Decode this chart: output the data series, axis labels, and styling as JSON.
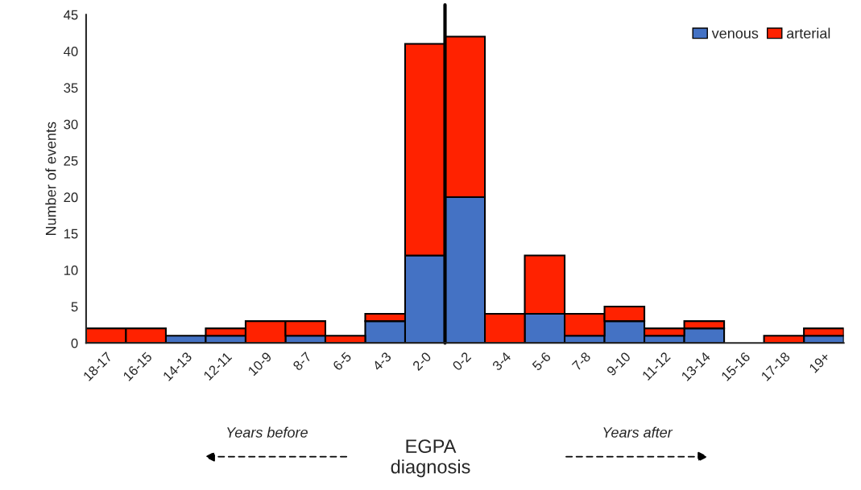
{
  "chart_data": {
    "type": "bar",
    "stacked": true,
    "ylabel": "Number of events",
    "categories": [
      "18-17",
      "16-15",
      "14-13",
      "12-11",
      "10-9",
      "8-7",
      "6-5",
      "4-3",
      "2-0",
      "0-2",
      "3-4",
      "5-6",
      "7-8",
      "9-10",
      "11-12",
      "13-14",
      "15-16",
      "17-18",
      "19+"
    ],
    "series": [
      {
        "name": "venous",
        "color": "#4472c4",
        "values": [
          0,
          0,
          1,
          1,
          0,
          1,
          0,
          3,
          12,
          20,
          0,
          4,
          1,
          3,
          1,
          2,
          0,
          0,
          1
        ]
      },
      {
        "name": "arterial",
        "color": "#ff2200",
        "values": [
          2,
          2,
          0,
          1,
          3,
          2,
          1,
          1,
          29,
          22,
          4,
          8,
          3,
          2,
          1,
          1,
          0,
          1,
          1
        ]
      }
    ],
    "ylim": [
      0,
      45
    ],
    "yticks": [
      0,
      5,
      10,
      15,
      20,
      25,
      30,
      35,
      40,
      45
    ],
    "grid": false,
    "legend": "top right",
    "annotations": [
      "Years before",
      "EGPA\ndiagnosis",
      "Years after"
    ]
  }
}
